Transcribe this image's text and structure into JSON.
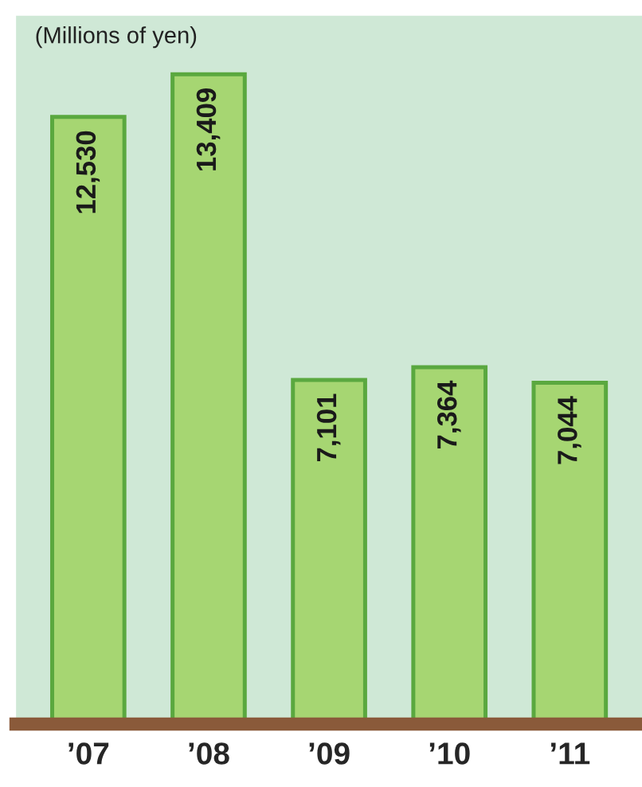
{
  "chart_data": {
    "type": "bar",
    "ylabel": "(Millions of yen)",
    "categories": [
      "’07",
      "’08",
      "’09",
      "’10",
      "’11"
    ],
    "series": [
      {
        "color": "#a6d672",
        "values": [
          12530,
          13409,
          7101,
          7364,
          7044
        ],
        "value_labels": [
          "12,530",
          "13,409",
          "7,101",
          "7,364",
          "7,044"
        ]
      }
    ]
  }
}
